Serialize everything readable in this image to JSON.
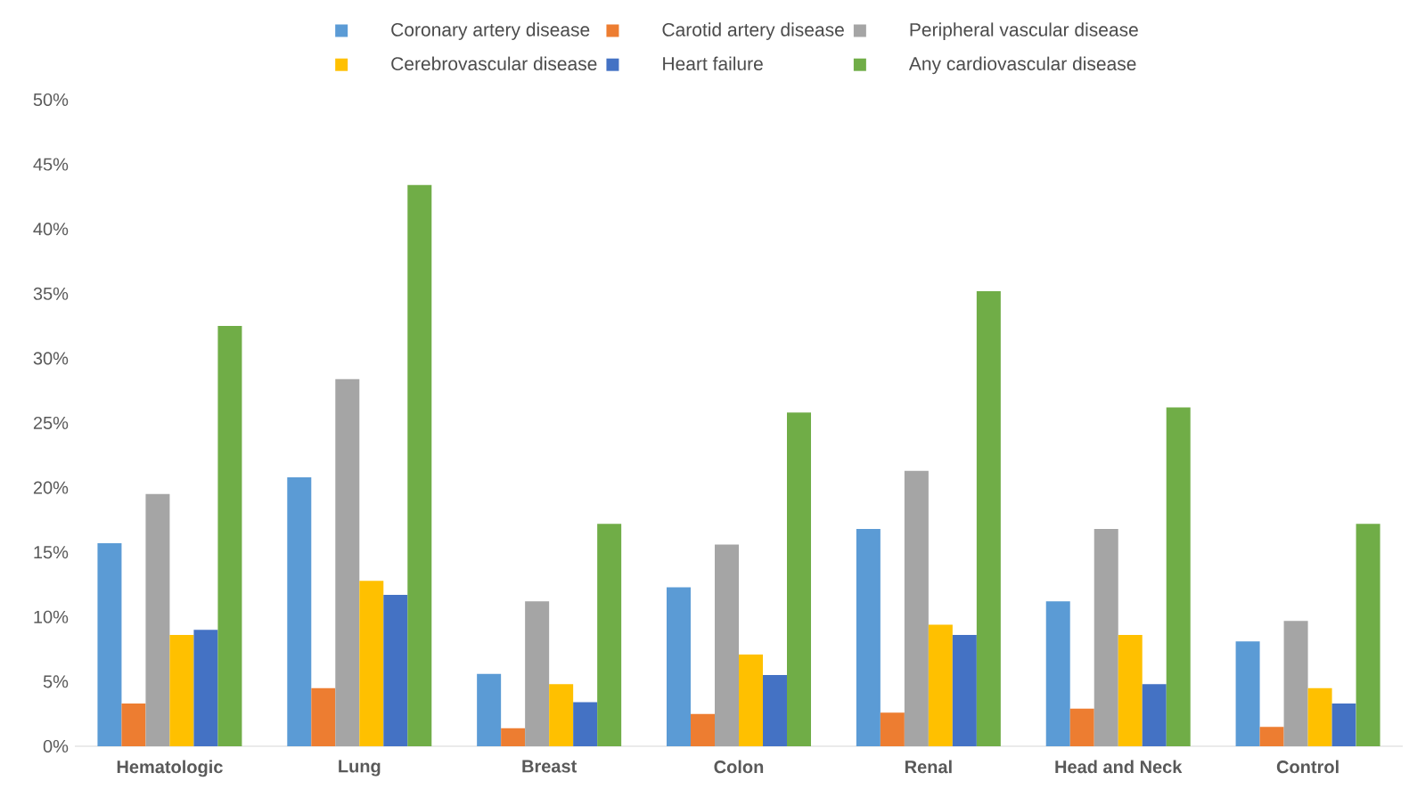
{
  "chart_data": {
    "type": "bar",
    "categories": [
      "Hematologic",
      "Lung",
      "Breast",
      "Colon",
      "Renal",
      "Head and Neck",
      "Control"
    ],
    "series": [
      {
        "name": "Coronary artery disease",
        "color": "#5b9bd5",
        "values": [
          15.7,
          20.8,
          5.6,
          12.3,
          16.8,
          11.2,
          8.1
        ]
      },
      {
        "name": "Carotid artery disease",
        "color": "#ed7d31",
        "values": [
          3.3,
          4.5,
          1.4,
          2.5,
          2.6,
          2.9,
          1.5
        ]
      },
      {
        "name": "Peripheral vascular disease",
        "color": "#a5a5a5",
        "values": [
          19.5,
          28.4,
          11.2,
          15.6,
          21.3,
          16.8,
          9.7
        ]
      },
      {
        "name": "Cerebrovascular disease",
        "color": "#ffc000",
        "values": [
          8.6,
          12.8,
          4.8,
          7.1,
          9.4,
          8.6,
          4.5
        ]
      },
      {
        "name": "Heart failure",
        "color": "#4472c4",
        "values": [
          9.0,
          11.7,
          3.4,
          5.5,
          8.6,
          4.8,
          3.3
        ]
      },
      {
        "name": "Any cardiovascular disease",
        "color": "#70ad47",
        "values": [
          32.5,
          43.4,
          17.2,
          25.8,
          35.2,
          26.2,
          17.2
        ]
      }
    ],
    "ylim": [
      0,
      50
    ],
    "yticks": [
      {
        "value": 0,
        "label": "0%"
      },
      {
        "value": 5,
        "label": "5%"
      },
      {
        "value": 10,
        "label": "10%"
      },
      {
        "value": 15,
        "label": "15%"
      },
      {
        "value": 20,
        "label": "20%"
      },
      {
        "value": 25,
        "label": "25%"
      },
      {
        "value": 30,
        "label": "30%"
      },
      {
        "value": 35,
        "label": "35%"
      },
      {
        "value": 40,
        "label": "40%"
      },
      {
        "value": 45,
        "label": "45%"
      },
      {
        "value": 50,
        "label": "50%"
      }
    ],
    "legend": "top"
  }
}
